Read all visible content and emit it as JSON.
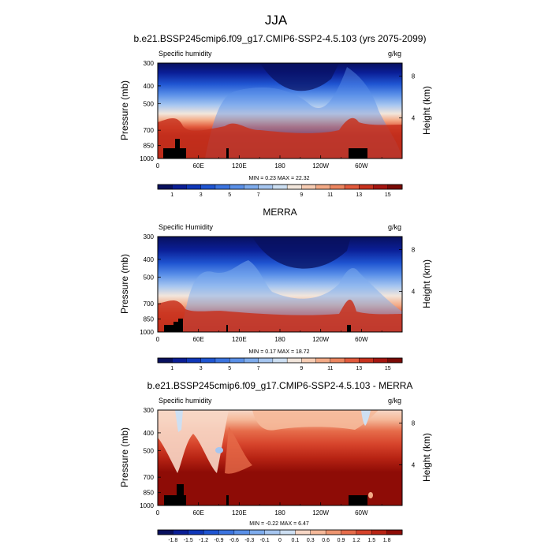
{
  "title": "JJA",
  "chart_data": [
    {
      "type": "heatmap",
      "title": "b.e21.BSSP245cmip6.f09_g17.CMIP6-SSP2-4.5.103 (yrs 2075-2099)",
      "left_label": "Specific humidity",
      "right_label": "g/kg",
      "xlabel": "",
      "ylabel": "Pressure (mb)",
      "y2label": "Height (km)",
      "x_ticks": [
        "0",
        "60E",
        "120E",
        "180",
        "120W",
        "60W"
      ],
      "x_tick_values": [
        0,
        60,
        120,
        180,
        240,
        300
      ],
      "xlim": [
        0,
        360
      ],
      "y_ticks": [
        "300",
        "400",
        "500",
        "700",
        "850",
        "1000"
      ],
      "y_tick_values": [
        300,
        400,
        500,
        700,
        850,
        1000
      ],
      "ylim": [
        1000,
        300
      ],
      "y_scale": "log",
      "y2_ticks": [
        "8",
        "4"
      ],
      "y2_tick_values": [
        8,
        4
      ],
      "stats": "MIN =   0.23  MAX =  22.32",
      "colorbar_labels": [
        "1",
        "3",
        "5",
        "7",
        "9",
        "11",
        "13",
        "15"
      ],
      "colors": [
        "#08105e",
        "#0a1e96",
        "#0f37b9",
        "#1f55d2",
        "#3b74e0",
        "#5a90e8",
        "#7eaced",
        "#a6c6f0",
        "#cddff2",
        "#f2e6dc",
        "#f7cdb4",
        "#f3aa86",
        "#ec855f",
        "#e25a3c",
        "#c8321e",
        "#a51510",
        "#7a0a05"
      ],
      "colorbar_position": "bottom"
    },
    {
      "type": "heatmap",
      "title": "MERRA",
      "left_label": "Specific Humidity",
      "right_label": "g/kg",
      "xlabel": "",
      "ylabel": "Pressure (mb)",
      "y2label": "Height (km)",
      "x_ticks": [
        "0",
        "60E",
        "120E",
        "180",
        "120W",
        "60W"
      ],
      "x_tick_values": [
        0,
        60,
        120,
        180,
        240,
        300
      ],
      "xlim": [
        0,
        360
      ],
      "y_ticks": [
        "300",
        "400",
        "500",
        "700",
        "850",
        "1000"
      ],
      "y_tick_values": [
        300,
        400,
        500,
        700,
        850,
        1000
      ],
      "ylim": [
        1000,
        300
      ],
      "y_scale": "log",
      "y2_ticks": [
        "8",
        "4"
      ],
      "y2_tick_values": [
        8,
        4
      ],
      "stats": "MIN =   0.17  MAX =  18.72",
      "colorbar_labels": [
        "1",
        "3",
        "5",
        "7",
        "9",
        "11",
        "13",
        "15"
      ],
      "colors": [
        "#08105e",
        "#0a1e96",
        "#0f37b9",
        "#1f55d2",
        "#3b74e0",
        "#5a90e8",
        "#7eaced",
        "#a6c6f0",
        "#cddff2",
        "#f2e6dc",
        "#f7cdb4",
        "#f3aa86",
        "#ec855f",
        "#e25a3c",
        "#c8321e",
        "#a51510",
        "#7a0a05"
      ],
      "colorbar_position": "bottom"
    },
    {
      "type": "heatmap",
      "title": "b.e21.BSSP245cmip6.f09_g17.CMIP6-SSP2-4.5.103 - MERRA",
      "left_label": "Specific humidity",
      "right_label": "g/kg",
      "xlabel": "",
      "ylabel": "Pressure (mb)",
      "y2label": "Height (km)",
      "x_ticks": [
        "0",
        "60E",
        "120E",
        "180",
        "120W",
        "60W"
      ],
      "x_tick_values": [
        0,
        60,
        120,
        180,
        240,
        300
      ],
      "xlim": [
        0,
        360
      ],
      "y_ticks": [
        "300",
        "400",
        "500",
        "700",
        "850",
        "1000"
      ],
      "y_tick_values": [
        300,
        400,
        500,
        700,
        850,
        1000
      ],
      "ylim": [
        1000,
        300
      ],
      "y_scale": "log",
      "y2_ticks": [
        "8",
        "4"
      ],
      "y2_tick_values": [
        8,
        4
      ],
      "stats": "MIN =  -0.22  MAX =   6.47",
      "colorbar_labels": [
        "-1.8",
        "-1.5",
        "-1.2",
        "-0.9",
        "-0.6",
        "-0.3",
        "-0.1",
        "0",
        "0.1",
        "0.3",
        "0.6",
        "0.9",
        "1.2",
        "1.5",
        "1.8"
      ],
      "colors": [
        "#08105e",
        "#0a1e96",
        "#0f37b9",
        "#1f55d2",
        "#3b74e0",
        "#5a90e8",
        "#7eaced",
        "#a6c6f0",
        "#cddff2",
        "#f7d7c6",
        "#f5b99a",
        "#ee9570",
        "#e66c4a",
        "#d6432b",
        "#b82414",
        "#8e0c06"
      ],
      "colorbar_position": "bottom"
    }
  ]
}
